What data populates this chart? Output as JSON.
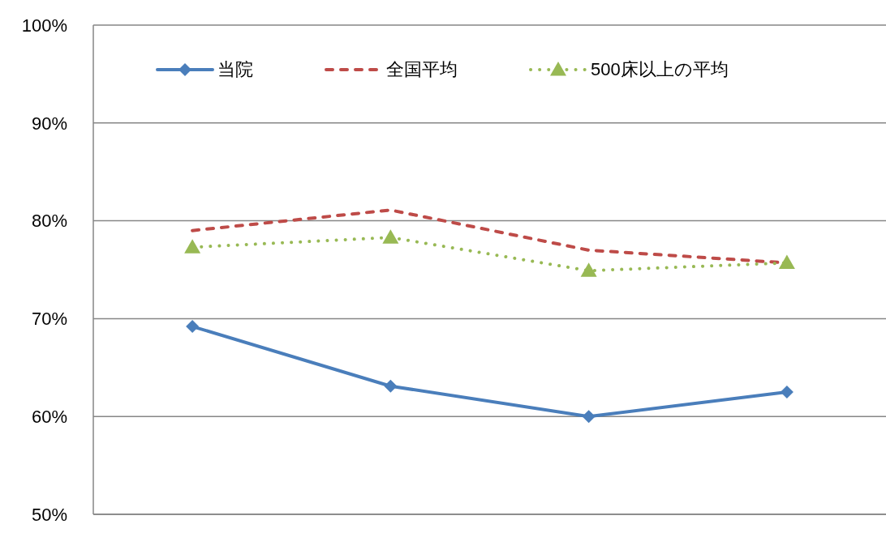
{
  "chart_data": {
    "type": "line",
    "categories": [
      null,
      null,
      null,
      null
    ],
    "series": [
      {
        "name": "当院",
        "color": "#4a7ebb",
        "values": [
          69.2,
          63.1,
          60.0,
          62.5
        ],
        "marker": "diamond",
        "line_style": "solid"
      },
      {
        "name": "全国平均",
        "color": "#be4b48",
        "values": [
          79.0,
          81.1,
          77.0,
          75.7
        ],
        "marker": "none",
        "line_style": "dashed"
      },
      {
        "name": "500床以上の平均",
        "color": "#98b954",
        "values": [
          77.3,
          78.3,
          74.9,
          75.7
        ],
        "marker": "triangle",
        "line_style": "dotted"
      }
    ],
    "ylim": [
      50,
      100
    ],
    "yticks": [
      {
        "value": 50,
        "label": "50%"
      },
      {
        "value": 60,
        "label": "60%"
      },
      {
        "value": 70,
        "label": "70%"
      },
      {
        "value": 80,
        "label": "80%"
      },
      {
        "value": 90,
        "label": "90%"
      },
      {
        "value": 100,
        "label": "100%"
      }
    ],
    "grid": "y",
    "legend": "top",
    "tick_labels": "y"
  }
}
